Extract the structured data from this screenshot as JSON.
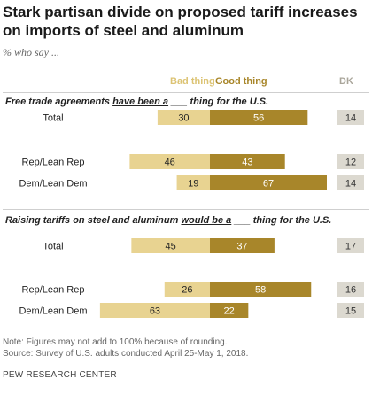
{
  "title": "Stark partisan divide on proposed tariff increases on imports of steel and aluminum",
  "subtitle": "% who say ...",
  "legend": {
    "bad": "Bad thing",
    "good": "Good thing",
    "dk": "DK"
  },
  "colors": {
    "bad": "#e8d391",
    "good": "#a8862a",
    "dk": "#dcd9d0",
    "bad_legend": "#dcc373",
    "good_legend": "#a8862a",
    "dk_legend": "#a9a59a"
  },
  "questions": [
    {
      "pre": "Free trade agreements ",
      "underline": "have been a",
      "post": " ___ thing for the U.S."
    },
    {
      "pre": "Raising tariffs on steel and aluminum ",
      "underline": "would be a",
      "post": " ___ thing for the U.S."
    }
  ],
  "chart_data": {
    "type": "bar",
    "orientation": "horizontal-diverging",
    "series_names": [
      "Bad thing",
      "Good thing",
      "DK"
    ],
    "panels": [
      {
        "question": "Free trade agreements have been a ___ thing for the U.S.",
        "rows": [
          {
            "label": "Total",
            "bad": 30,
            "good": 56,
            "dk": 14
          },
          {
            "label": "Rep/Lean Rep",
            "bad": 46,
            "good": 43,
            "dk": 12
          },
          {
            "label": "Dem/Lean Dem",
            "bad": 19,
            "good": 67,
            "dk": 14
          }
        ]
      },
      {
        "question": "Raising tariffs on steel and aluminum would be a ___ thing for the U.S.",
        "rows": [
          {
            "label": "Total",
            "bad": 45,
            "good": 37,
            "dk": 17
          },
          {
            "label": "Rep/Lean Rep",
            "bad": 26,
            "good": 58,
            "dk": 16
          },
          {
            "label": "Dem/Lean Dem",
            "bad": 63,
            "good": 22,
            "dk": 15
          }
        ]
      }
    ]
  },
  "notes": [
    "Note: Figures may not add to 100% because of rounding.",
    "Source: Survey of U.S. adults conducted April 25-May 1, 2018."
  ],
  "brand": "PEW RESEARCH CENTER"
}
